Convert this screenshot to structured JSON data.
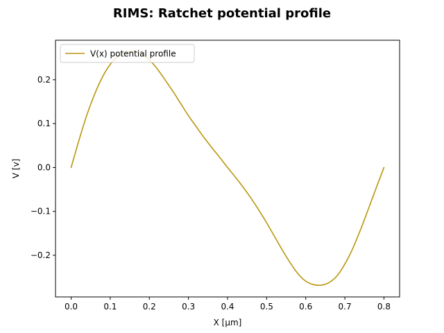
{
  "chart_data": {
    "type": "line",
    "title": "RIMS: Ratchet potential profile",
    "xlabel": "X [μm]",
    "ylabel": "V [v]",
    "xlim": [
      -0.04,
      0.84
    ],
    "ylim": [
      -0.295,
      0.29
    ],
    "xticks": [
      0.0,
      0.1,
      0.2,
      0.3,
      0.4,
      0.5,
      0.6,
      0.7,
      0.8
    ],
    "xtick_labels": [
      "0.0",
      "0.1",
      "0.2",
      "0.3",
      "0.4",
      "0.5",
      "0.6",
      "0.7",
      "0.8"
    ],
    "yticks": [
      -0.2,
      -0.1,
      0.0,
      0.1,
      0.2
    ],
    "ytick_labels": [
      "−0.2",
      "−0.1",
      "0.0",
      "0.1",
      "0.2"
    ],
    "grid": false,
    "legend_position": "upper left",
    "series": [
      {
        "name": "V(x) potential profile",
        "color": "#b8960c",
        "x": [
          0.0,
          0.02,
          0.04,
          0.06,
          0.08,
          0.1,
          0.12,
          0.14,
          0.16,
          0.18,
          0.2,
          0.22,
          0.24,
          0.26,
          0.28,
          0.3,
          0.32,
          0.34,
          0.36,
          0.38,
          0.4,
          0.42,
          0.44,
          0.46,
          0.48,
          0.5,
          0.52,
          0.54,
          0.56,
          0.58,
          0.6,
          0.62,
          0.64,
          0.66,
          0.68,
          0.7,
          0.72,
          0.74,
          0.76,
          0.78,
          0.8
        ],
        "y": [
          0.0,
          0.062,
          0.119,
          0.167,
          0.206,
          0.235,
          0.253,
          0.262,
          0.264,
          0.259,
          0.245,
          0.225,
          0.2,
          0.174,
          0.146,
          0.118,
          0.093,
          0.068,
          0.045,
          0.023,
          0.0,
          -0.022,
          -0.045,
          -0.07,
          -0.097,
          -0.126,
          -0.157,
          -0.188,
          -0.217,
          -0.242,
          -0.259,
          -0.267,
          -0.268,
          -0.262,
          -0.247,
          -0.22,
          -0.185,
          -0.142,
          -0.095,
          -0.047,
          0.0
        ]
      }
    ]
  }
}
